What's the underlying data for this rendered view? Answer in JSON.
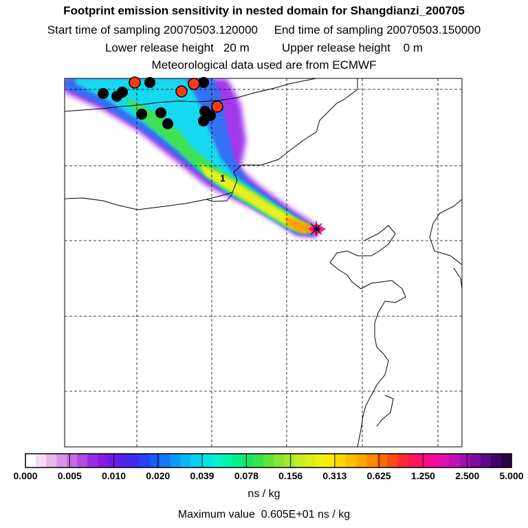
{
  "titles": {
    "line1": "Footprint emission sensitivity in nested domain for Shangdianzi_200705",
    "line2": "Start time of sampling 20070503.120000     End time of sampling 20070503.150000",
    "line3": "Lower release height   20 m          Upper release height    0 m",
    "line4": "Meteorological data used are from ECMWF"
  },
  "map": {
    "cluster_label": "1"
  },
  "chart_data": {
    "type": "heatmap",
    "title": "Footprint emission sensitivity in nested domain for Shangdianzi_200705",
    "unit_label": "ns / kg",
    "max_value_text": "Maximum value  0.605E+01 ns / kg",
    "colorbar_ticks": [
      "0.000",
      "0.005",
      "0.010",
      "0.020",
      "0.039",
      "0.078",
      "0.156",
      "0.313",
      "0.625",
      "1.250",
      "2.500",
      "5.000"
    ],
    "colorbar_colors": [
      "#ffffff",
      "#f7dcf7",
      "#eab6f0",
      "#d991ea",
      "#c56ce6",
      "#b14ae1",
      "#9b2be0",
      "#8519e4",
      "#6c1be8",
      "#5222ea",
      "#3a2cee",
      "#2740f2",
      "#1a5af5",
      "#127af7",
      "#0e9bf8",
      "#0bb7f6",
      "#09cff0",
      "#07e4e2",
      "#06f1cc",
      "#05f5ad",
      "#06ef8a",
      "#14e866",
      "#36e54a",
      "#5fe43a",
      "#86e632",
      "#a7e82c",
      "#c4eb25",
      "#dcee1e",
      "#eef016",
      "#fbe90d",
      "#ffd605",
      "#ffbf00",
      "#ffa600",
      "#ff8a00",
      "#ff6a00",
      "#ff4a12",
      "#ff2a33",
      "#ff1658",
      "#ff0a7c",
      "#f00b9b",
      "#db11b0",
      "#bd14b8",
      "#9e10b0",
      "#7c0d9d",
      "#5c0a85",
      "#3f0666",
      "#2a0345"
    ],
    "max_value": 6.05,
    "receptor_location": "Shangdianzi"
  },
  "colors": {
    "coast": "#000000",
    "grid": "#000000",
    "particle_black": "#000000",
    "particle_red": "#ff3a10"
  }
}
